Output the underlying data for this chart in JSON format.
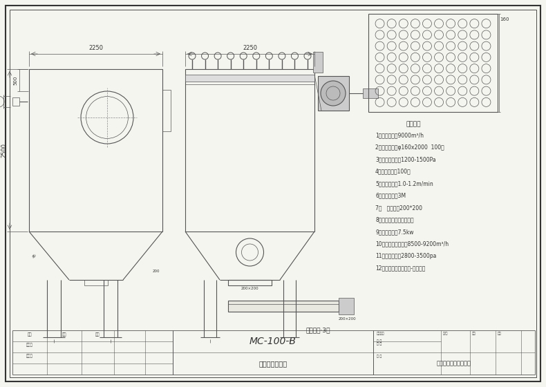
{
  "bg_color": "#f5f5f0",
  "line_color": "#555555",
  "dark_color": "#333333",
  "title": "MC-100-B",
  "subtitle": "脉冲衤式除尘器",
  "company": "河北泼隆环保有限公司",
  "tech_title": "技术参数",
  "tech_params": [
    "1。处理风量：9000m³/h",
    "2。滤袋规格：φ160x2000  100条",
    "3。除尘阴压力：1200-1500Pa",
    "4。过滤面积：100㎡",
    "5。过滤风速：1.0-1.2m/min",
    "6。螺旋输送：3M",
    "7。   卸料口：200*200",
    "8。布袋材质：涜纶采刷绖",
    "9。风机型号：7.5kw",
    "10。风机处理风量：8500-9200m³/h",
    "11。风机风压：2800-3500pa",
    "12。卸尘方式：卸料器-螺旋输送"
  ],
  "screw_label": "螺旋输送·3米",
  "dim_2250": "2250",
  "dim_2500": "2500",
  "dim_500": "500",
  "dim_160": "160",
  "label_200x200": "200×200"
}
